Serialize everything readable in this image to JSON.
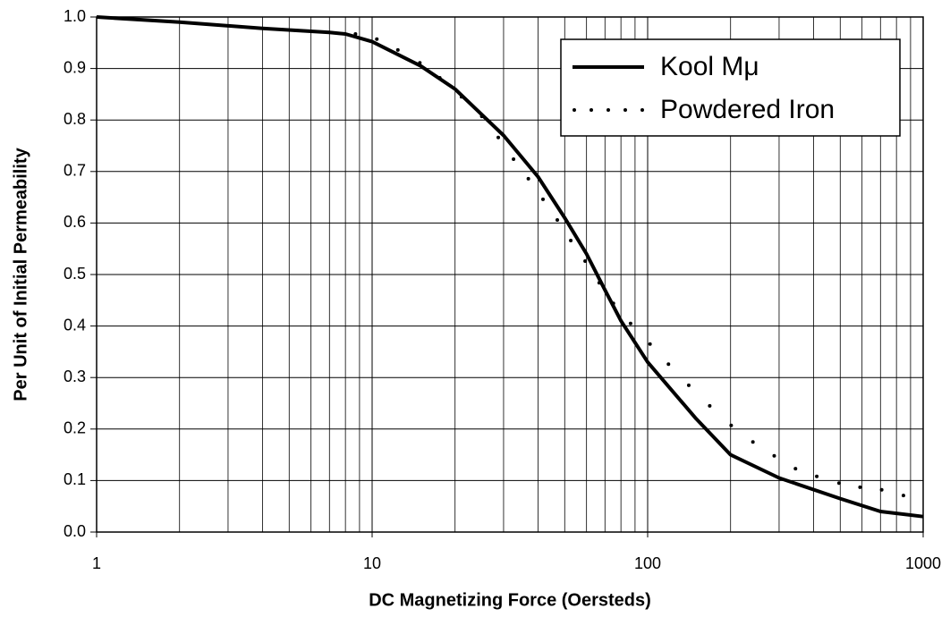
{
  "chart_data": {
    "type": "line",
    "xlabel": "DC Magnetizing Force (Oersteds)",
    "ylabel": "Per Unit of Initial Permeability",
    "xscale": "log",
    "xlim": [
      1,
      1000
    ],
    "xticks": [
      1,
      10,
      100,
      1000
    ],
    "xminorticks": [
      2,
      3,
      4,
      5,
      6,
      7,
      8,
      9,
      20,
      30,
      40,
      50,
      60,
      70,
      80,
      90,
      200,
      300,
      400,
      500,
      600,
      700,
      800,
      900
    ],
    "ylim": [
      0,
      1
    ],
    "yticks": [
      {
        "value": 0,
        "label": "0.0"
      },
      0.1,
      0.2,
      0.3,
      0.4,
      0.5,
      0.6,
      0.7,
      0.8,
      0.9,
      {
        "value": 1,
        "label": "1.0"
      }
    ],
    "grid": true,
    "legend": "upper right",
    "series": [
      {
        "name": "Kool Mμ",
        "color": "#000000",
        "style": "solid",
        "x": [
          1,
          2,
          4,
          7,
          8,
          10,
          15,
          20,
          30,
          40,
          50,
          60,
          70,
          80,
          100,
          150,
          200,
          300,
          500,
          700,
          1000
        ],
        "values": [
          1.0,
          0.99,
          0.978,
          0.97,
          0.967,
          0.952,
          0.905,
          0.86,
          0.77,
          0.69,
          0.61,
          0.54,
          0.47,
          0.41,
          0.33,
          0.22,
          0.15,
          0.105,
          0.065,
          0.04,
          0.03
        ]
      },
      {
        "name": "Powdered Iron",
        "color": "#000000",
        "style": "dotted",
        "x": [
          8.7,
          10.4,
          12.4,
          14.9,
          17.6,
          21.1,
          25,
          28.7,
          32.6,
          36.9,
          41.7,
          47,
          52.6,
          59.3,
          66.7,
          75.1,
          86.7,
          102,
          119,
          141,
          168,
          201,
          241,
          288,
          344,
          411,
          495,
          590,
          707,
          848
        ],
        "values": [
          0.967,
          0.957,
          0.936,
          0.911,
          0.882,
          0.845,
          0.807,
          0.766,
          0.724,
          0.686,
          0.646,
          0.606,
          0.566,
          0.526,
          0.484,
          0.444,
          0.405,
          0.365,
          0.326,
          0.285,
          0.245,
          0.207,
          0.175,
          0.148,
          0.123,
          0.108,
          0.095,
          0.087,
          0.082,
          0.071
        ]
      }
    ]
  }
}
